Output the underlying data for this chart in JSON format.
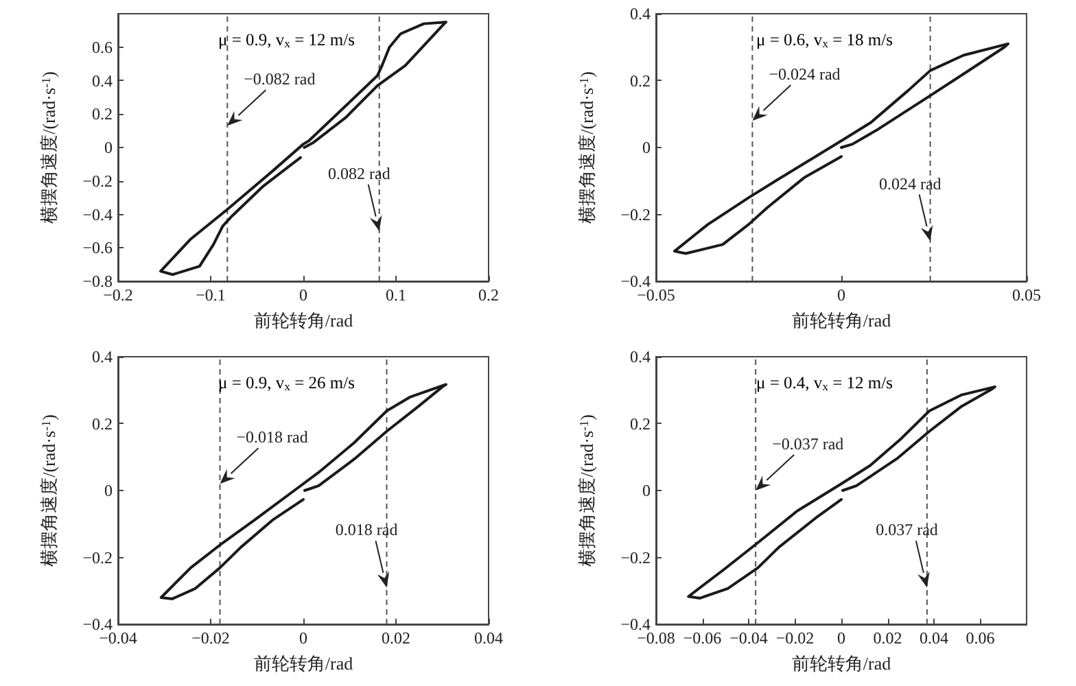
{
  "chart_data": [
    {
      "type": "line",
      "xlabel": "前轮转角/rad",
      "ylabel": "横摆角速度/(rad·s$^{-1}$)",
      "xlim": [
        -0.2,
        0.2
      ],
      "xticks": [
        -0.2,
        -0.1,
        0,
        0.1,
        0.2
      ],
      "ylim": [
        -0.8,
        0.8
      ],
      "yticks": [
        -0.8,
        -0.6,
        -0.4,
        -0.2,
        0,
        0.2,
        0.4,
        0.6
      ],
      "marker": "none",
      "line_style": "solid",
      "series": [
        {
          "color": "#1a1a1a",
          "x": [
            0.001,
            0.011,
            0.046,
            0.08,
            0.11,
            0.152,
            0.154,
            0.13,
            0.105,
            0.093,
            0.085,
            0.08,
            0.046,
            0.006,
            0,
            -0.033,
            -0.082,
            -0.122,
            -0.154,
            -0.141,
            -0.112,
            -0.097,
            -0.087,
            -0.077,
            -0.043,
            -0.003
          ],
          "values": [
            0,
            0.03,
            0.18,
            0.37,
            0.49,
            0.74,
            0.75,
            0.74,
            0.68,
            0.6,
            0.49,
            0.43,
            0.25,
            0.04,
            0.02,
            -0.14,
            -0.37,
            -0.55,
            -0.74,
            -0.76,
            -0.71,
            -0.58,
            -0.47,
            -0.41,
            -0.23,
            -0.06
          ]
        }
      ],
      "ref_lines": [
        {
          "axis": "x",
          "value": -0.082,
          "color": "#555555",
          "line_style": "dashed"
        },
        {
          "axis": "x",
          "value": 0.082,
          "color": "#555555",
          "line_style": "dashed"
        }
      ],
      "annotations": [
        "μ = 0.9, v$_{x}$ = 12 m/s",
        {
          "text": "−0.082 rad",
          "x": -0.082,
          "y": 0.13
        },
        {
          "text": "0.082 rad",
          "x": 0.082,
          "y": -0.5
        }
      ]
    },
    {
      "type": "line",
      "xlabel": "前轮转角/rad",
      "ylabel": "横摆角速度/(rad·s$^{-1}$)",
      "xlim": [
        -0.05,
        0.05
      ],
      "xticks": [
        -0.05,
        0,
        0.05
      ],
      "ylim": [
        -0.4,
        0.4
      ],
      "yticks": [
        -0.4,
        -0.2,
        0,
        0.2,
        0.4
      ],
      "marker": "none",
      "line_style": "solid",
      "series": [
        {
          "color": "#1a1a1a",
          "x": [
            0,
            0.003,
            0.01,
            0.024,
            0.033,
            0.044,
            0.045,
            0.033,
            0.024,
            0.018,
            0.008,
            0,
            -0.017,
            -0.025,
            -0.036,
            -0.045,
            -0.042,
            -0.032,
            -0.025,
            -0.02,
            -0.01,
            0
          ],
          "values": [
            0,
            0.01,
            0.055,
            0.155,
            0.22,
            0.3,
            0.31,
            0.276,
            0.23,
            0.17,
            0.075,
            0.02,
            -0.095,
            -0.15,
            -0.23,
            -0.31,
            -0.317,
            -0.29,
            -0.23,
            -0.18,
            -0.09,
            -0.027
          ]
        }
      ],
      "ref_lines": [
        {
          "axis": "x",
          "value": -0.024,
          "color": "#555555",
          "line_style": "dashed"
        },
        {
          "axis": "x",
          "value": 0.024,
          "color": "#555555",
          "line_style": "dashed"
        }
      ],
      "annotations": [
        "μ = 0.6, v$_{x}$ = 18 m/s",
        {
          "text": "−0.024 rad",
          "x": -0.024,
          "y": 0.08
        },
        {
          "text": "0.024 rad",
          "x": 0.024,
          "y": -0.28
        }
      ]
    },
    {
      "type": "line",
      "xlabel": "前轮转角/rad",
      "ylabel": "横摆角速度/(rad·s$^{-1}$)",
      "xlim": [
        -0.04,
        0.04
      ],
      "xticks": [
        -0.04,
        -0.02,
        0,
        0.02,
        0.04
      ],
      "ylim": [
        -0.4,
        0.4
      ],
      "yticks": [
        -0.4,
        -0.2,
        0,
        0.2,
        0.4
      ],
      "marker": "none",
      "line_style": "solid",
      "series": [
        {
          "color": "#1a1a1a",
          "x": [
            0.0003,
            0.0033,
            0.0111,
            0.018,
            0.0249,
            0.0303,
            0.0308,
            0.023,
            0.018,
            0.011,
            0.0033,
            0,
            -0.0105,
            -0.018,
            -0.0243,
            -0.0307,
            -0.0283,
            -0.0233,
            -0.018,
            -0.0135,
            -0.0066,
            0
          ],
          "values": [
            0,
            0.014,
            0.095,
            0.177,
            0.252,
            0.313,
            0.317,
            0.279,
            0.238,
            0.143,
            0.054,
            0.02,
            -0.088,
            -0.163,
            -0.231,
            -0.32,
            -0.324,
            -0.293,
            -0.231,
            -0.17,
            -0.088,
            -0.027
          ]
        }
      ],
      "ref_lines": [
        {
          "axis": "x",
          "value": -0.018,
          "color": "#555555",
          "line_style": "dashed"
        },
        {
          "axis": "x",
          "value": 0.018,
          "color": "#555555",
          "line_style": "dashed"
        }
      ],
      "annotations": [
        "μ = 0.9, v$_{x}$ = 26 m/s",
        {
          "text": "−0.018 rad",
          "x": -0.018,
          "y": 0.02
        },
        {
          "text": "0.018 rad",
          "x": 0.018,
          "y": -0.29
        }
      ]
    },
    {
      "type": "line",
      "xlabel": "前轮转角/rad",
      "ylabel": "横摆角速度/(rad·s$^{-1}$)",
      "xlim": [
        -0.08,
        0.08
      ],
      "xticks": [
        -0.08,
        -0.06,
        -0.04,
        -0.02,
        0,
        0.02,
        0.04,
        0.06
      ],
      "ylim": [
        -0.4,
        0.4
      ],
      "yticks": [
        -0.4,
        -0.2,
        0,
        0.2,
        0.4
      ],
      "marker": "none",
      "line_style": "solid",
      "series": [
        {
          "color": "#1a1a1a",
          "x": [
            0.0006,
            0.0065,
            0.024,
            0.038,
            0.052,
            0.065,
            0.0663,
            0.052,
            0.038,
            0.026,
            0.0125,
            0,
            -0.019,
            -0.036,
            -0.051,
            -0.066,
            -0.061,
            -0.049,
            -0.036,
            -0.027,
            -0.011,
            0
          ],
          "values": [
            0,
            0.014,
            0.095,
            0.177,
            0.252,
            0.303,
            0.31,
            0.286,
            0.238,
            0.156,
            0.075,
            0.02,
            -0.061,
            -0.156,
            -0.238,
            -0.317,
            -0.322,
            -0.293,
            -0.231,
            -0.17,
            -0.082,
            -0.027
          ]
        }
      ],
      "ref_lines": [
        {
          "axis": "x",
          "value": -0.037,
          "color": "#555555",
          "line_style": "dashed"
        },
        {
          "axis": "x",
          "value": 0.037,
          "color": "#555555",
          "line_style": "dashed"
        }
      ],
      "annotations": [
        "μ = 0.4, v$_{x}$ = 12 m/s",
        {
          "text": "−0.037 rad",
          "x": -0.037,
          "y": 0
        },
        {
          "text": "0.037 rad",
          "x": 0.037,
          "y": -0.29
        }
      ]
    }
  ]
}
